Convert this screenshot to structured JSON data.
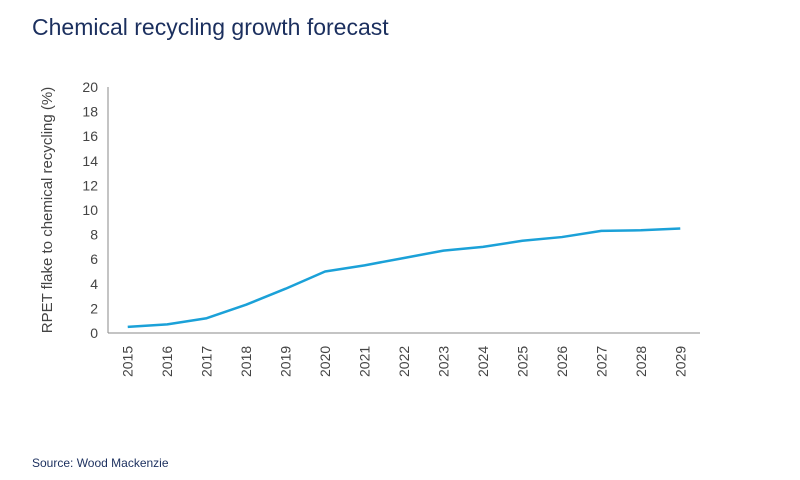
{
  "title": "Chemical recycling growth forecast",
  "source": "Source: Wood Mackenzie",
  "chart_data": {
    "type": "line",
    "title": "Chemical recycling growth forecast",
    "xlabel": "",
    "ylabel": "RPET flake to chemical recycling (%)",
    "ylim": [
      0,
      20
    ],
    "yticks": [
      0,
      2,
      4,
      6,
      8,
      10,
      12,
      14,
      16,
      18,
      20
    ],
    "grid": false,
    "categories": [
      "2015",
      "2016",
      "2017",
      "2018",
      "2019",
      "2020",
      "2021",
      "2022",
      "2023",
      "2024",
      "2025",
      "2026",
      "2027",
      "2028",
      "2029"
    ],
    "series": [
      {
        "values": [
          0.5,
          0.7,
          1.2,
          2.3,
          3.6,
          5.0,
          5.5,
          6.1,
          6.7,
          7.0,
          7.5,
          7.8,
          8.3,
          8.35,
          8.5
        ],
        "color": "#1ba1d8"
      }
    ]
  }
}
